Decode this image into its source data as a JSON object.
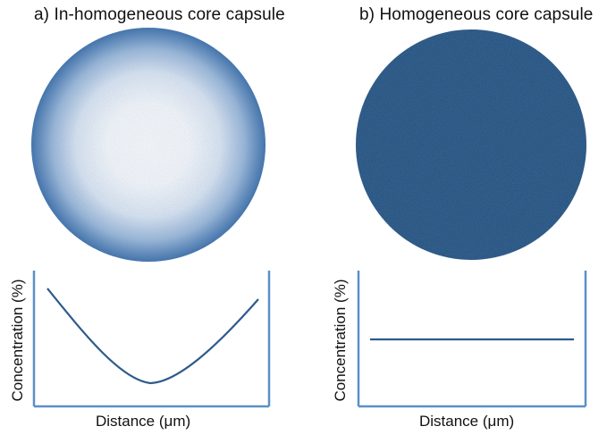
{
  "panels": [
    {
      "title": "a) In-homogeneous core capsule",
      "ylabel": "Concentration (%)",
      "xlabel": "Distance (μm)",
      "profile": "u-shaped",
      "sphere_center_color": "#ffffff",
      "sphere_edge_color": "#3b6aa8"
    },
    {
      "title": "b) Homogeneous core capsule",
      "ylabel": "Concentration (%)",
      "xlabel": "Distance (μm)",
      "profile": "flat",
      "sphere_color": "#1f4a7a"
    }
  ],
  "colors": {
    "axis": "#5b8fc9",
    "curve": "#2f5a8c"
  }
}
